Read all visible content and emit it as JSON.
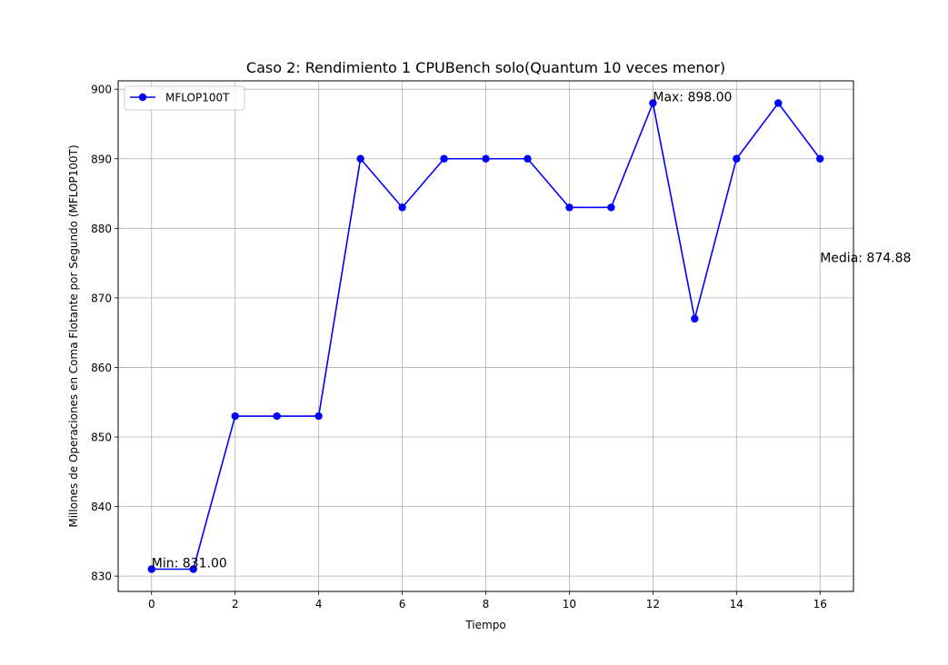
{
  "chart_data": {
    "type": "line",
    "title": "Caso 2: Rendimiento 1 CPUBench solo(Quantum 10 veces menor)",
    "xlabel": "Tiempo",
    "ylabel": "Millones de Operaciones en Coma Flotante por Segundo (MFLOP100T)",
    "xlim": [
      -0.8,
      16.8
    ],
    "ylim": [
      827.8,
      901.2
    ],
    "xticks": [
      0,
      2,
      4,
      6,
      8,
      10,
      12,
      14,
      16
    ],
    "yticks": [
      830,
      840,
      850,
      860,
      870,
      880,
      890,
      900
    ],
    "grid": true,
    "legend_position": "top-left",
    "series": [
      {
        "name": "MFLOP100T",
        "color": "#0000ff",
        "marker": "circle",
        "x": [
          0,
          1,
          2,
          3,
          4,
          5,
          6,
          7,
          8,
          9,
          10,
          11,
          12,
          13,
          14,
          15,
          16
        ],
        "y": [
          831,
          831,
          853,
          853,
          853,
          890,
          883,
          890,
          890,
          890,
          883,
          883,
          898,
          867,
          890,
          898,
          890
        ]
      }
    ],
    "annotations": [
      {
        "text": "Min: 831.00",
        "x": 0,
        "y": 831
      },
      {
        "text": "Max: 898.00",
        "x": 12,
        "y": 898
      },
      {
        "text": "Media: 874.88",
        "x": 16,
        "y": 874.88
      }
    ]
  }
}
